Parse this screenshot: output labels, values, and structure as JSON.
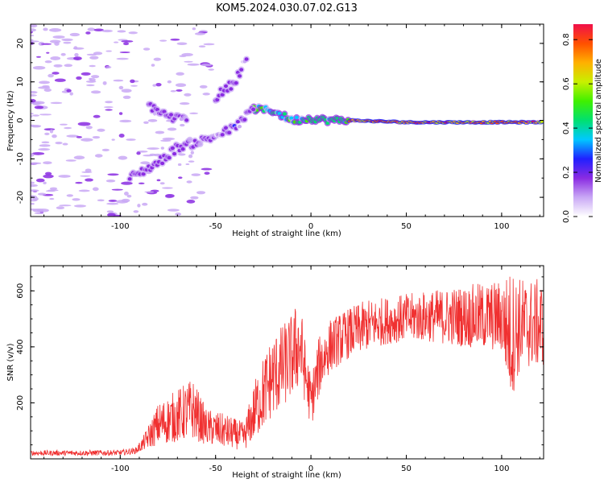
{
  "title": "KOM5.2024.030.07.02.G13",
  "chart_data": [
    {
      "type": "heatmap",
      "panel": "spectrogram",
      "xlabel": "Height of straight line (km)",
      "ylabel": "Frequency (Hz)",
      "xlim": [
        -147,
        122
      ],
      "ylim": [
        -25,
        25
      ],
      "xticks": [
        -100,
        -50,
        0,
        50,
        100
      ],
      "yticks": [
        -20,
        -10,
        0,
        10,
        20
      ],
      "colorbar": {
        "label": "Normalized spectral amplitude",
        "range": [
          0.0,
          0.87
        ],
        "ticks": [
          0.0,
          0.2,
          0.4,
          0.6,
          0.8
        ],
        "colormap": [
          "#ffffff",
          "#c9a8f5",
          "#8a2be2",
          "#2020ff",
          "#00c8ff",
          "#00e070",
          "#40f000",
          "#c8f000",
          "#ffb000",
          "#ff5000",
          "#f0104a"
        ]
      },
      "ridges": [
        {
          "name": "main",
          "points": [
            [
              -30,
              3
            ],
            [
              -20,
              2.5
            ],
            [
              -10,
              0
            ],
            [
              0,
              0.5
            ],
            [
              10,
              0
            ],
            [
              20,
              0
            ],
            [
              50,
              -0.5
            ],
            [
              100,
              -0.5
            ],
            [
              122,
              -0.5
            ]
          ]
        },
        {
          "name": "upper-branch",
          "points": [
            [
              -50,
              6
            ],
            [
              -40,
              10
            ],
            [
              -33,
              17
            ]
          ]
        },
        {
          "name": "lower-branch",
          "points": [
            [
              -95,
              -15
            ],
            [
              -80,
              -11
            ],
            [
              -70,
              -7
            ],
            [
              -55,
              -5
            ],
            [
              -40,
              -2
            ],
            [
              -30,
              3
            ]
          ]
        },
        {
          "name": "mid-branch",
          "points": [
            [
              -85,
              4
            ],
            [
              -75,
              1
            ],
            [
              -65,
              0
            ]
          ]
        }
      ]
    },
    {
      "type": "line",
      "panel": "snr",
      "xlabel": "Height of straight line (km)",
      "ylabel": "SNR (v/v)",
      "xlim": [
        -147,
        122
      ],
      "ylim": [
        0,
        690
      ],
      "xticks": [
        -100,
        -50,
        0,
        50,
        100
      ],
      "yticks": [
        200,
        400,
        600
      ],
      "color": "#f03030",
      "envelope": [
        [
          -147,
          12,
          30
        ],
        [
          -100,
          12,
          32
        ],
        [
          -92,
          18,
          40
        ],
        [
          -88,
          30,
          80
        ],
        [
          -80,
          50,
          200
        ],
        [
          -70,
          60,
          250
        ],
        [
          -62,
          70,
          290
        ],
        [
          -55,
          50,
          180
        ],
        [
          -45,
          40,
          160
        ],
        [
          -35,
          30,
          130
        ],
        [
          -28,
          80,
          320
        ],
        [
          -20,
          150,
          450
        ],
        [
          -15,
          180,
          480
        ],
        [
          -10,
          220,
          520
        ],
        [
          -6,
          250,
          590
        ],
        [
          -3,
          200,
          420
        ],
        [
          0,
          110,
          300
        ],
        [
          5,
          240,
          460
        ],
        [
          10,
          310,
          500
        ],
        [
          20,
          360,
          540
        ],
        [
          30,
          390,
          570
        ],
        [
          40,
          410,
          580
        ],
        [
          50,
          420,
          590
        ],
        [
          60,
          420,
          600
        ],
        [
          70,
          410,
          610
        ],
        [
          80,
          400,
          620
        ],
        [
          90,
          390,
          630
        ],
        [
          100,
          380,
          640
        ],
        [
          105,
          210,
          680
        ],
        [
          110,
          320,
          650
        ],
        [
          122,
          330,
          640
        ]
      ]
    }
  ]
}
